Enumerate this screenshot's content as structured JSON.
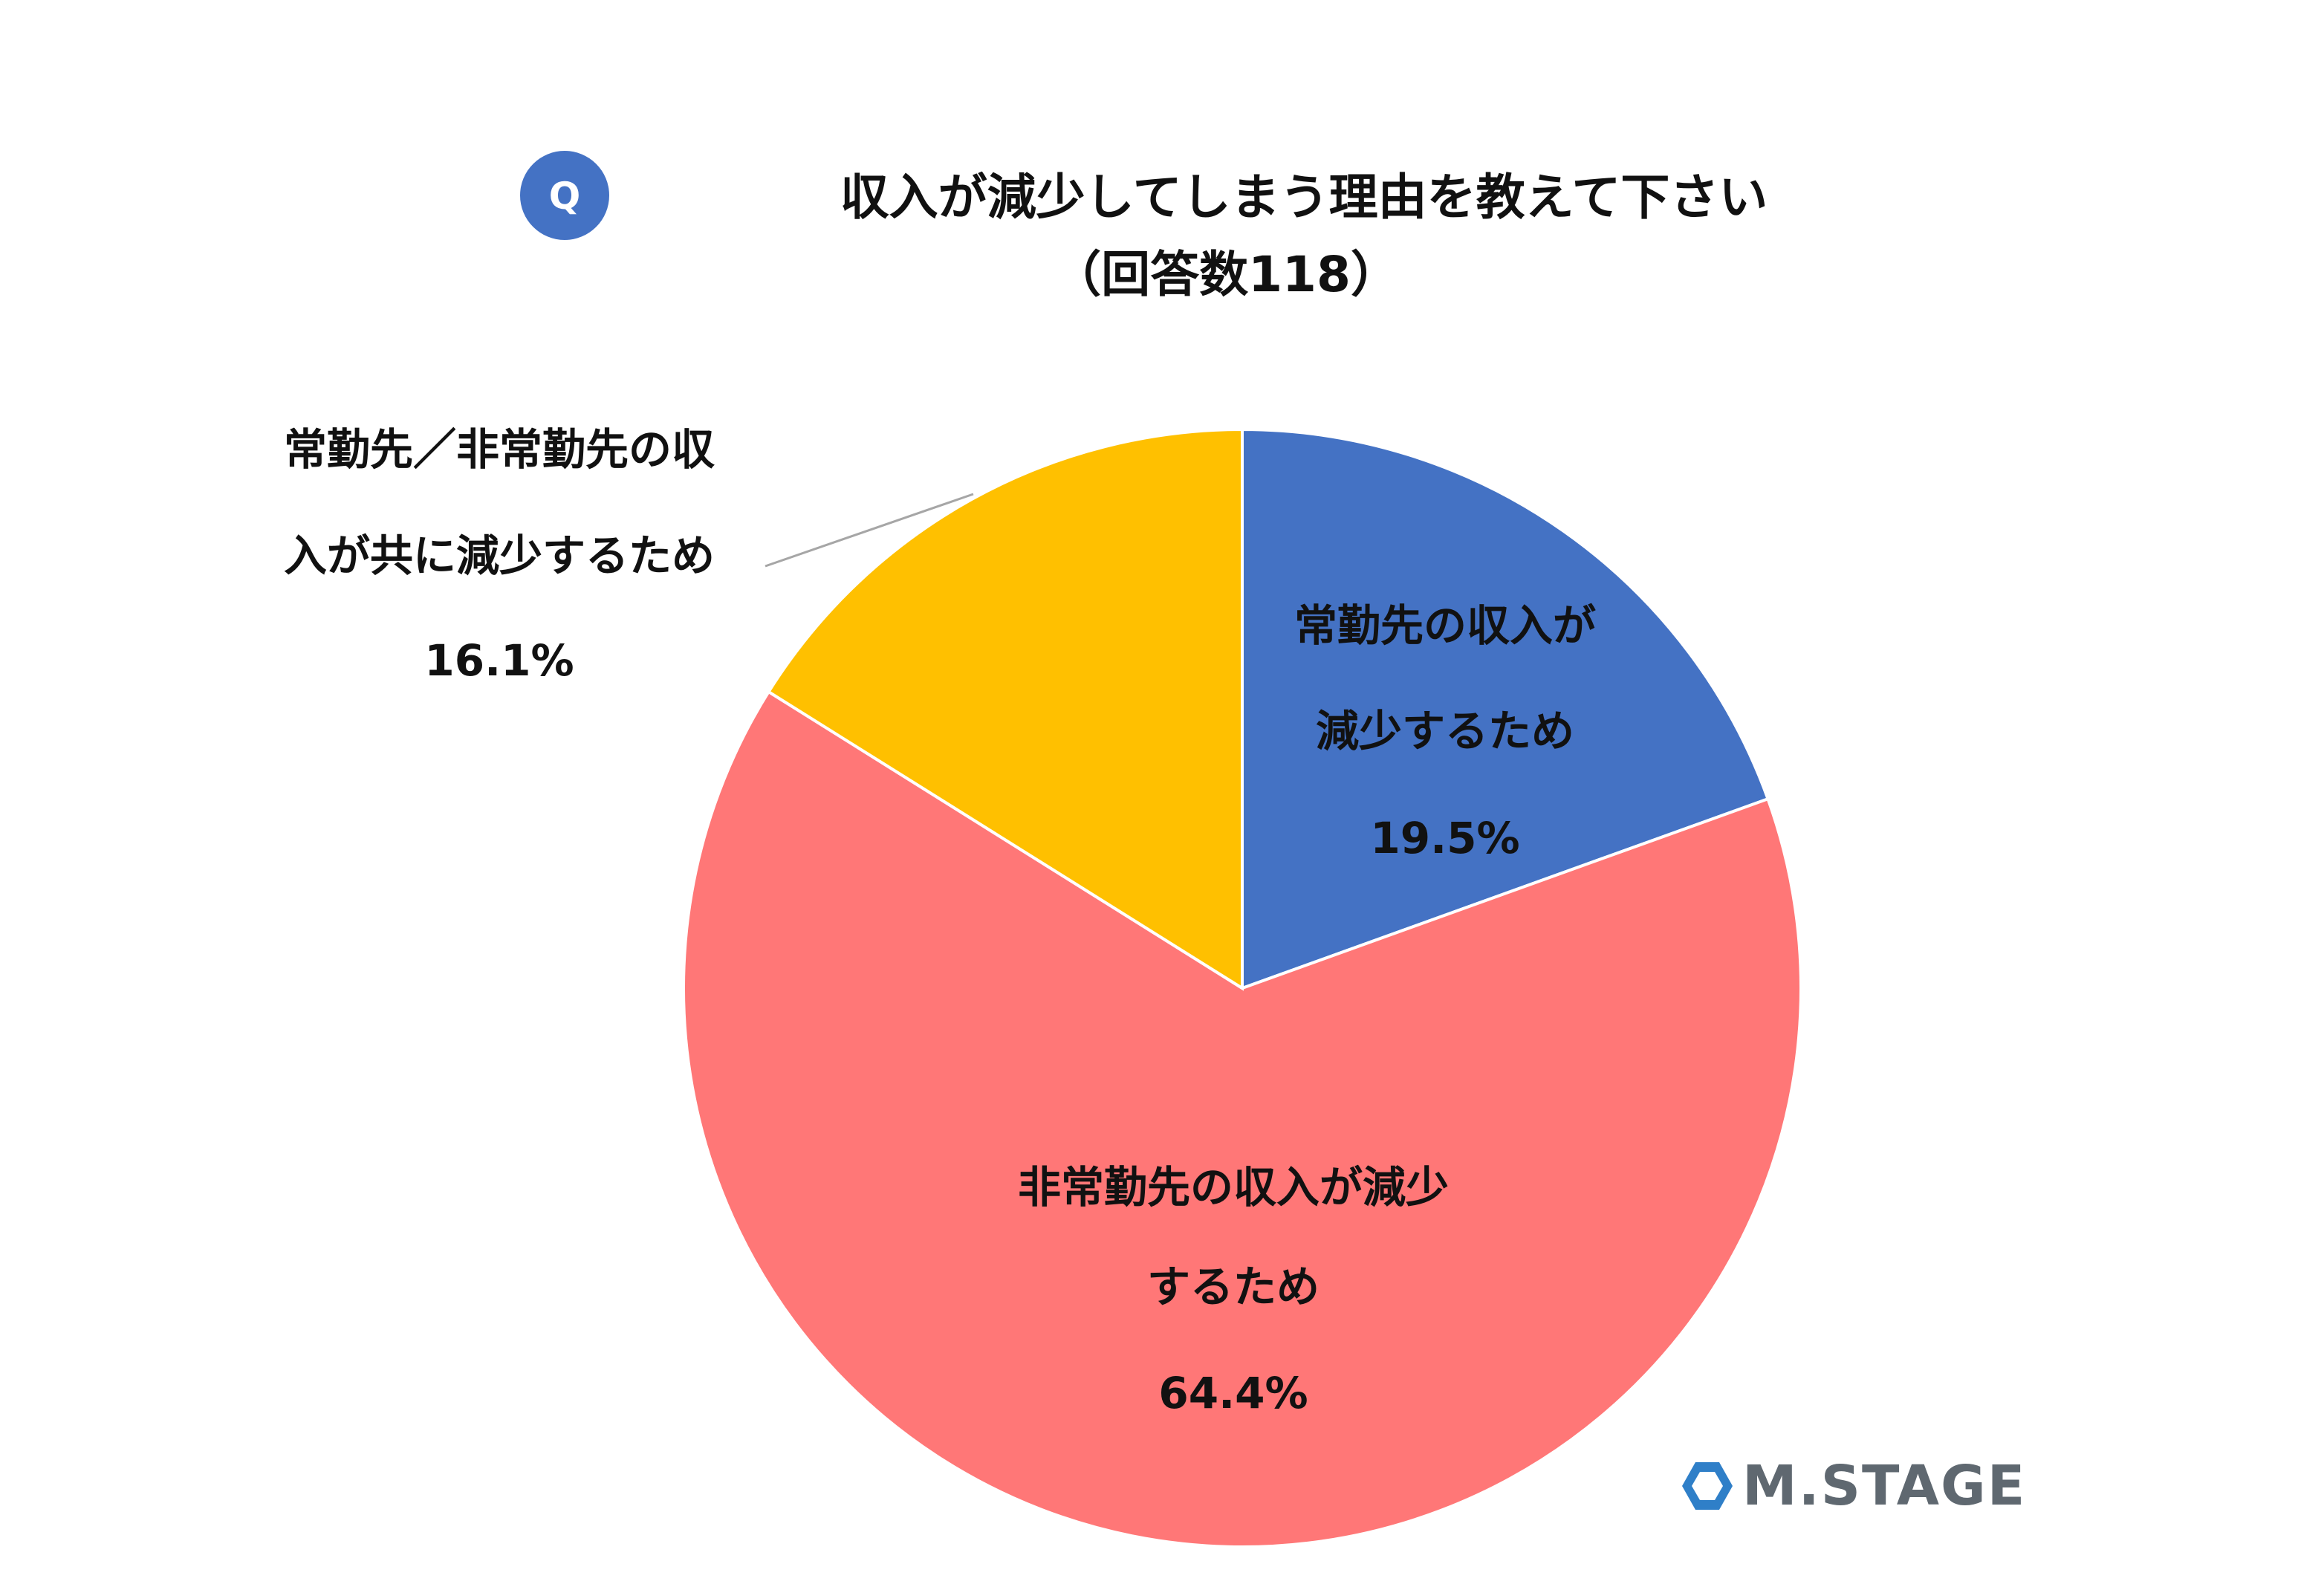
{
  "question_badge": "Q",
  "title_line1": "収入が減少してしまう理由を教えて下さい",
  "title_line2": "（回答数118）",
  "logo_text": "M.STAGE",
  "chart_data": {
    "type": "pie",
    "start_angle_deg": 0,
    "direction": "clockwise",
    "slices": [
      {
        "label_lines": [
          "常勤先の収入が",
          "減少するため"
        ],
        "value_label": "19.5%",
        "value": 19.5,
        "color": "#4472C4"
      },
      {
        "label_lines": [
          "非常勤先の収入が減少",
          "するため"
        ],
        "value_label": "64.4%",
        "value": 64.4,
        "color": "#FF7777"
      },
      {
        "label_lines": [
          "常勤先／非常勤先の収",
          "入が共に減少するため"
        ],
        "value_label": "16.1%",
        "value": 16.1,
        "color": "#FFC000"
      }
    ]
  },
  "colors": {
    "badge": "#4472C4",
    "slice_border": "#ffffff",
    "leader_line": "#a6a6a6",
    "logo_icon": "#2f7fc8",
    "logo_text": "#5f6870"
  }
}
